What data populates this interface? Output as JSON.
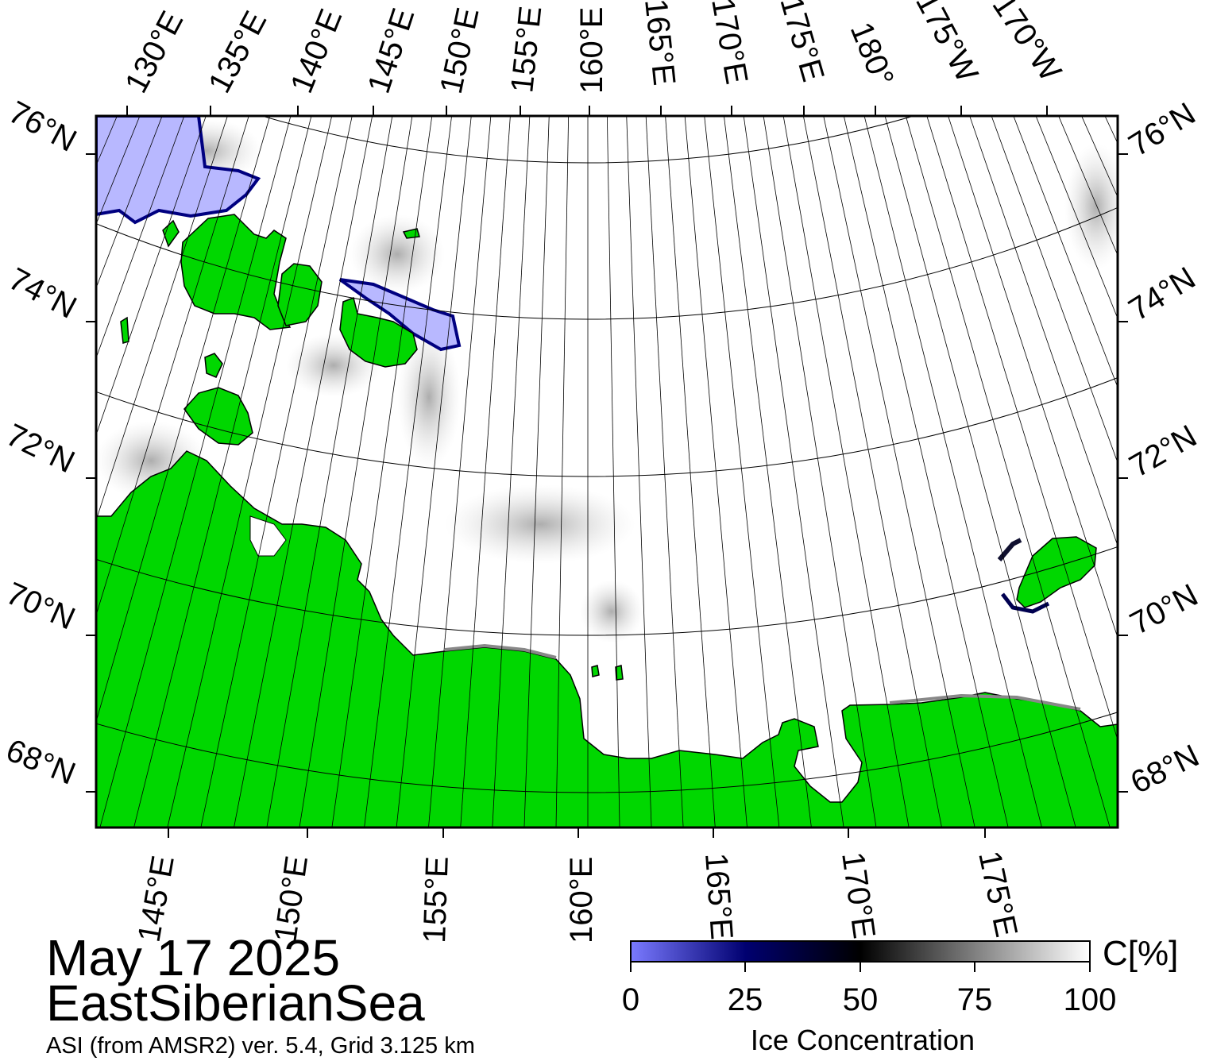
{
  "map": {
    "date": "May 17 2025",
    "region": "EastSiberianSea",
    "source": "ASI (from AMSR2) ver. 5.4,  Grid 3.125 km",
    "colors": {
      "land": "#00d700",
      "ocean": "#ffffff",
      "ice_low": "#7a7aff",
      "ice_mid": "#000060",
      "ice_dark": "#000000",
      "ice_high": "#ffffff",
      "coast_shadow": "#888888",
      "grid": "#000000"
    },
    "top_lon_labels": [
      "130°E",
      "135°E",
      "140°E",
      "145°E",
      "150°E",
      "155°E",
      "160°E",
      "165°E",
      "170°E",
      "175°E",
      "180°",
      "175°W",
      "170°W"
    ],
    "bottom_lon_labels": [
      "145°E",
      "150°E",
      "155°E",
      "160°E",
      "165°E",
      "170°E",
      "175°E"
    ],
    "left_lat_labels": [
      "76°N",
      "74°N",
      "72°N",
      "70°N",
      "68°N"
    ],
    "right_lat_labels": [
      "76°N",
      "74°N",
      "72°N",
      "70°N",
      "68°N"
    ]
  },
  "colorbar": {
    "title": "Ice Concentration",
    "unit": "C[%]",
    "ticks": [
      "0",
      "25",
      "50",
      "75",
      "100"
    ]
  }
}
